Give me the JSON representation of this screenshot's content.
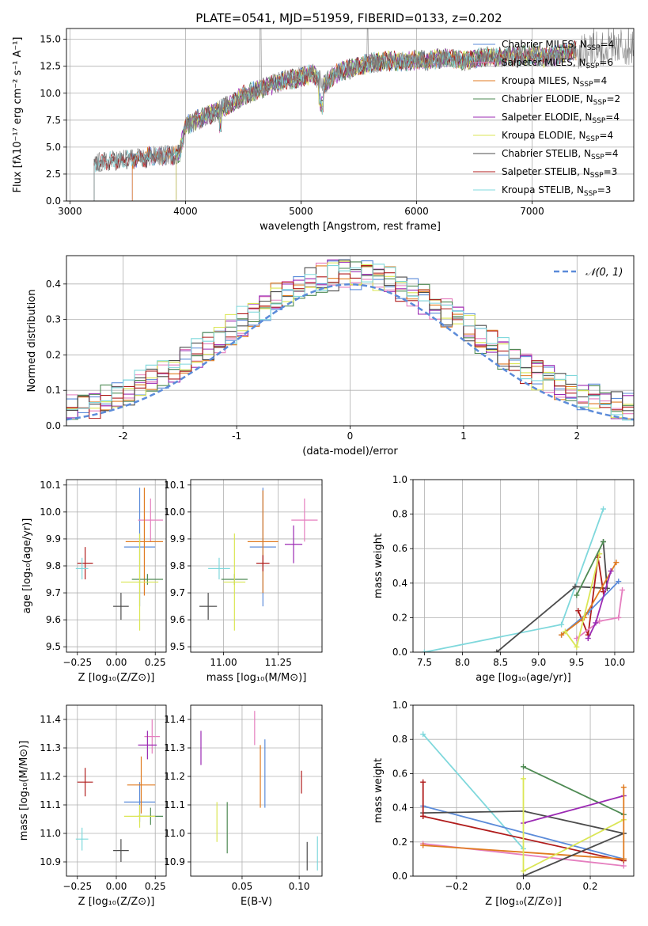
{
  "figure_title": "PLATE=0541, MJD=51959, FIBERID=0133, z=0.202",
  "colors": {
    "Chabrier MILES": "#5b8bd9",
    "Salpeter MILES": "#e57fbf",
    "Kroupa MILES": "#e07b20",
    "Chabrier ELODIE": "#4e8a53",
    "Salpeter ELODIE": "#9b2ab3",
    "Kroupa ELODIE": "#dbe655",
    "Chabrier STELIB": "#4c4c4c",
    "Salpeter STELIB": "#b01c1c",
    "Kroupa STELIB": "#7fd8dc",
    "normal": "#5b8bd9"
  },
  "chart_data": [
    {
      "id": "spectrum",
      "type": "line",
      "title": "PLATE=0541, MJD=51959, FIBERID=0133, z=0.202",
      "xlabel": "wavelength [Angstrom, rest frame]",
      "ylabel": "Flux [fλ10⁻¹⁷ erg cm⁻² s⁻¹ A⁻¹]",
      "xlim": [
        2970,
        7880
      ],
      "ylim": [
        0,
        16
      ],
      "xticks": [
        3000,
        4000,
        5000,
        6000,
        7000
      ],
      "yticks": [
        0.0,
        2.5,
        5.0,
        7.5,
        10.0,
        12.5,
        15.0
      ],
      "legend_position": "right",
      "legend": [
        {
          "model": "Chabrier MILES",
          "nssp": "4"
        },
        {
          "model": "Salpeter MILES",
          "nssp": "6"
        },
        {
          "model": "Kroupa MILES",
          "nssp": "4"
        },
        {
          "model": "Chabrier ELODIE",
          "nssp": "2"
        },
        {
          "model": "Salpeter ELODIE",
          "nssp": "4"
        },
        {
          "model": "Kroupa ELODIE",
          "nssp": "4"
        },
        {
          "model": "Chabrier STELIB",
          "nssp": "4"
        },
        {
          "model": "Salpeter STELIB",
          "nssp": "3"
        },
        {
          "model": "Kroupa STELIB",
          "nssp": "3"
        }
      ],
      "envelope": {
        "x": [
          3200,
          3300,
          3400,
          3500,
          3600,
          3700,
          3800,
          3900,
          3950,
          4000,
          4100,
          4200,
          4300,
          4400,
          4500,
          4600,
          4700,
          4800,
          4900,
          5000,
          5100,
          5200,
          5300,
          5400,
          5500,
          5600,
          5700,
          5800,
          5900,
          6000,
          6100,
          6200,
          6300,
          6400,
          6500,
          6600,
          6700,
          6800,
          6900,
          7000,
          7100,
          7200,
          7300,
          7400,
          7500
        ],
        "y": [
          3.5,
          3.6,
          3.8,
          3.9,
          3.9,
          4.1,
          4.2,
          4.3,
          4.5,
          7.0,
          7.5,
          8.0,
          8.5,
          9.0,
          9.8,
          10.2,
          10.6,
          11.0,
          11.3,
          11.5,
          11.8,
          10.8,
          11.8,
          12.2,
          12.5,
          12.8,
          12.9,
          13.0,
          12.9,
          13.1,
          13.0,
          13.2,
          13.3,
          13.0,
          13.2,
          13.4,
          13.3,
          13.5,
          13.4,
          13.6,
          13.3,
          13.5,
          13.8,
          14.0,
          14.2
        ]
      },
      "model_starts": {
        "Chabrier MILES": 3540,
        "Salpeter MILES": 3540,
        "Kroupa MILES": 3540,
        "Chabrier ELODIE": 3920,
        "Salpeter ELODIE": 3920,
        "Kroupa ELODIE": 3920,
        "Chabrier STELIB": 3210,
        "Salpeter STELIB": 3210,
        "Kroupa STELIB": 3210
      }
    },
    {
      "id": "residual_histogram",
      "type": "line",
      "xlabel": "(data-model)/error",
      "ylabel": "Normed distribution",
      "xlim": [
        -2.5,
        2.5
      ],
      "ylim": [
        0,
        0.48
      ],
      "xticks": [
        -2,
        -1,
        0,
        1,
        2
      ],
      "yticks": [
        0.0,
        0.1,
        0.2,
        0.3,
        0.4
      ],
      "legend": [
        "𝒩(0, 1)"
      ],
      "legend_position": "top-right",
      "bin_edges": [
        -2.5,
        2.5
      ],
      "bins": 50,
      "reference_curve": "normal(0,1)"
    },
    {
      "id": "age_vs_Z",
      "type": "scatter",
      "xlabel": "Z [log₁₀(Z/Z⊙)]",
      "ylabel": "age  [log₁₀(age/yr)]",
      "xlim": [
        -0.32,
        0.32
      ],
      "ylim": [
        9.48,
        10.12
      ],
      "xticks": [
        -0.25,
        0.0,
        0.25
      ],
      "xtick_labels": [
        "−0.25",
        "0.00",
        "0.25"
      ],
      "yticks": [
        9.5,
        9.6,
        9.7,
        9.8,
        9.9,
        10.0,
        10.1
      ],
      "points": [
        {
          "model": "Chabrier MILES",
          "x": 0.15,
          "y": 9.87,
          "xerr": 0.1,
          "yerr": 0.22
        },
        {
          "model": "Salpeter MILES",
          "x": 0.22,
          "y": 9.97,
          "xerr": 0.08,
          "yerr": 0.08
        },
        {
          "model": "Kroupa MILES",
          "x": 0.18,
          "y": 9.89,
          "xerr": 0.12,
          "yerr": 0.2
        },
        {
          "model": "Chabrier ELODIE",
          "x": 0.2,
          "y": 9.75,
          "xerr": 0.1,
          "yerr": 0.02
        },
        {
          "model": "Kroupa ELODIE",
          "x": 0.15,
          "y": 9.74,
          "xerr": 0.12,
          "yerr": 0.18
        },
        {
          "model": "Chabrier STELIB",
          "x": 0.03,
          "y": 9.65,
          "xerr": 0.05,
          "yerr": 0.05
        },
        {
          "model": "Salpeter STELIB",
          "x": -0.2,
          "y": 9.81,
          "xerr": 0.05,
          "yerr": 0.06
        },
        {
          "model": "Kroupa STELIB",
          "x": -0.22,
          "y": 9.79,
          "xerr": 0.04,
          "yerr": 0.04
        }
      ]
    },
    {
      "id": "age_vs_mass",
      "type": "scatter",
      "xlabel": "mass [log₁₀(M/M⊙)]",
      "ylabel": "",
      "xlim": [
        10.85,
        11.45
      ],
      "ylim": [
        9.48,
        10.12
      ],
      "xticks": [
        11.0,
        11.25
      ],
      "xtick_labels": [
        "11.00",
        "11.25"
      ],
      "yticks": [
        9.5,
        9.6,
        9.7,
        9.8,
        9.9,
        10.0,
        10.1
      ],
      "points": [
        {
          "model": "Chabrier MILES",
          "x": 11.18,
          "y": 9.87,
          "xerr": 0.06,
          "yerr": 0.22
        },
        {
          "model": "Salpeter MILES",
          "x": 11.37,
          "y": 9.97,
          "xerr": 0.06,
          "yerr": 0.08
        },
        {
          "model": "Kroupa MILES",
          "x": 11.18,
          "y": 9.89,
          "xerr": 0.07,
          "yerr": 0.19
        },
        {
          "model": "Salpeter ELODIE",
          "x": 11.32,
          "y": 9.88,
          "xerr": 0.04,
          "yerr": 0.07
        },
        {
          "model": "Chabrier ELODIE",
          "x": 11.05,
          "y": 9.75,
          "xerr": 0.06,
          "yerr": 0.02
        },
        {
          "model": "Kroupa ELODIE",
          "x": 11.05,
          "y": 9.74,
          "xerr": 0.05,
          "yerr": 0.18
        },
        {
          "model": "Chabrier STELIB",
          "x": 10.93,
          "y": 9.65,
          "xerr": 0.04,
          "yerr": 0.05
        },
        {
          "model": "Salpeter STELIB",
          "x": 11.18,
          "y": 9.81,
          "xerr": 0.03,
          "yerr": 0.03
        },
        {
          "model": "Kroupa STELIB",
          "x": 10.98,
          "y": 9.79,
          "xerr": 0.05,
          "yerr": 0.04
        }
      ]
    },
    {
      "id": "massweight_vs_age",
      "type": "line",
      "xlabel": "age  [log₁₀(age/yr)]",
      "ylabel": "mass weight",
      "xlim": [
        7.35,
        10.25
      ],
      "ylim": [
        0,
        1
      ],
      "xticks": [
        7.5,
        8.0,
        8.5,
        9.0,
        9.5,
        10.0
      ],
      "xtick_labels": [
        "7.5",
        "8.0",
        "8.5",
        "9.0",
        "9.5",
        "10.0"
      ],
      "yticks": [
        0.0,
        0.2,
        0.4,
        0.6,
        0.8,
        1.0
      ],
      "series": [
        {
          "model": "Kroupa STELIB",
          "x": [
            7.5,
            9.3,
            9.85
          ],
          "y": [
            0.0,
            0.16,
            0.83
          ]
        },
        {
          "model": "Chabrier STELIB",
          "x": [
            8.45,
            9.48,
            9.9,
            9.85
          ],
          "y": [
            0.0,
            0.38,
            0.37,
            0.64
          ]
        },
        {
          "model": "Salpeter STELIB",
          "x": [
            9.52,
            9.65,
            9.78,
            9.85
          ],
          "y": [
            0.24,
            0.1,
            0.55,
            0.35
          ]
        },
        {
          "model": "Chabrier MILES",
          "x": [
            9.3,
            9.65,
            10.05
          ],
          "y": [
            0.1,
            0.23,
            0.41
          ]
        },
        {
          "model": "Kroupa MILES",
          "x": [
            9.3,
            9.6,
            10.02
          ],
          "y": [
            0.1,
            0.2,
            0.52
          ]
        },
        {
          "model": "Salpeter MILES",
          "x": [
            9.5,
            9.8,
            10.05,
            10.1
          ],
          "y": [
            0.08,
            0.18,
            0.2,
            0.36
          ]
        },
        {
          "model": "Salpeter ELODIE",
          "x": [
            9.65,
            9.75,
            9.95
          ],
          "y": [
            0.08,
            0.17,
            0.47
          ]
        },
        {
          "model": "Kroupa ELODIE",
          "x": [
            9.35,
            9.5,
            9.8
          ],
          "y": [
            0.12,
            0.03,
            0.57
          ]
        },
        {
          "model": "Chabrier ELODIE",
          "x": [
            9.5,
            9.85
          ],
          "y": [
            0.33,
            0.64
          ]
        }
      ]
    },
    {
      "id": "mass_vs_Z",
      "type": "scatter",
      "xlabel": "Z [log₁₀(Z/Z⊙)]",
      "ylabel": "mass [log₁₀(M/M⊙)]",
      "xlim": [
        -0.32,
        0.32
      ],
      "ylim": [
        10.85,
        11.45
      ],
      "xticks": [
        -0.25,
        0.0,
        0.25
      ],
      "xtick_labels": [
        "−0.25",
        "0.00",
        "0.25"
      ],
      "yticks": [
        10.9,
        11.0,
        11.1,
        11.2,
        11.3,
        11.4
      ],
      "points": [
        {
          "model": "Chabrier MILES",
          "x": 0.15,
          "y": 11.11,
          "xerr": 0.1,
          "yerr": 0.07
        },
        {
          "model": "Salpeter MILES",
          "x": 0.23,
          "y": 11.34,
          "xerr": 0.05,
          "yerr": 0.06
        },
        {
          "model": "Kroupa MILES",
          "x": 0.16,
          "y": 11.17,
          "xerr": 0.09,
          "yerr": 0.1
        },
        {
          "model": "Salpeter ELODIE",
          "x": 0.2,
          "y": 11.31,
          "xerr": 0.06,
          "yerr": 0.05
        },
        {
          "model": "Chabrier ELODIE",
          "x": 0.22,
          "y": 11.06,
          "xerr": 0.08,
          "yerr": 0.03
        },
        {
          "model": "Kroupa ELODIE",
          "x": 0.15,
          "y": 11.06,
          "xerr": 0.1,
          "yerr": 0.04
        },
        {
          "model": "Chabrier STELIB",
          "x": 0.03,
          "y": 10.94,
          "xerr": 0.05,
          "yerr": 0.04
        },
        {
          "model": "Salpeter STELIB",
          "x": -0.2,
          "y": 11.18,
          "xerr": 0.05,
          "yerr": 0.05
        },
        {
          "model": "Kroupa STELIB",
          "x": -0.22,
          "y": 10.98,
          "xerr": 0.04,
          "yerr": 0.04
        }
      ]
    },
    {
      "id": "mass_vs_ebv",
      "type": "scatter",
      "xlabel": "E(B-V)",
      "ylabel": "",
      "xlim": [
        0.005,
        0.12
      ],
      "ylim": [
        10.85,
        11.45
      ],
      "xticks": [
        0.05,
        0.1
      ],
      "xtick_labels": [
        "0.05",
        "0.10"
      ],
      "yticks": [
        10.9,
        11.0,
        11.1,
        11.2,
        11.3,
        11.4
      ],
      "points": [
        {
          "model": "Salpeter ELODIE",
          "x": 0.014,
          "y": 11.3,
          "yerr": 0.06
        },
        {
          "model": "Kroupa ELODIE",
          "x": 0.028,
          "y": 11.04,
          "yerr": 0.07
        },
        {
          "model": "Chabrier ELODIE",
          "x": 0.037,
          "y": 11.02,
          "yerr": 0.09
        },
        {
          "model": "Salpeter MILES",
          "x": 0.061,
          "y": 11.37,
          "yerr": 0.06
        },
        {
          "model": "Kroupa MILES",
          "x": 0.066,
          "y": 11.2,
          "yerr": 0.11
        },
        {
          "model": "Chabrier MILES",
          "x": 0.07,
          "y": 11.21,
          "yerr": 0.12
        },
        {
          "model": "Salpeter STELIB",
          "x": 0.102,
          "y": 11.18,
          "yerr": 0.04
        },
        {
          "model": "Chabrier STELIB",
          "x": 0.107,
          "y": 10.92,
          "yerr": 0.05
        },
        {
          "model": "Kroupa STELIB",
          "x": 0.116,
          "y": 10.93,
          "yerr": 0.06
        }
      ]
    },
    {
      "id": "massweight_vs_Z",
      "type": "line",
      "xlabel": "Z [log₁₀(Z/Z⊙)]",
      "ylabel": "mass weight",
      "xlim": [
        -0.33,
        0.33
      ],
      "ylim": [
        0,
        1
      ],
      "xticks": [
        -0.2,
        0.0,
        0.2
      ],
      "xtick_labels": [
        "−0.2",
        "0.0",
        "0.2"
      ],
      "yticks": [
        0.0,
        0.2,
        0.4,
        0.6,
        0.8,
        1.0
      ],
      "series": [
        {
          "model": "Kroupa STELIB",
          "x": [
            -0.3,
            0.0
          ],
          "y": [
            0.83,
            0.16
          ]
        },
        {
          "model": "Chabrier MILES",
          "x": [
            -0.3,
            0.3
          ],
          "y": [
            0.41,
            0.1
          ]
        },
        {
          "model": "Chabrier STELIB",
          "x": [
            -0.3,
            0.0,
            0.3
          ],
          "y": [
            0.37,
            0.38,
            0.25
          ]
        },
        {
          "model": "Salpeter STELIB",
          "x": [
            -0.3,
            0.3
          ],
          "y": [
            0.35,
            0.09
          ]
        },
        {
          "model": "Salpeter STELIB",
          "x": [
            -0.3,
            -0.3
          ],
          "y": [
            0.35,
            0.55
          ]
        },
        {
          "model": "Salpeter MILES",
          "x": [
            -0.3,
            0.3
          ],
          "y": [
            0.19,
            0.06
          ]
        },
        {
          "model": "Kroupa MILES",
          "x": [
            -0.3,
            0.3
          ],
          "y": [
            0.18,
            0.1
          ]
        },
        {
          "model": "Chabrier ELODIE",
          "x": [
            0.0,
            0.3
          ],
          "y": [
            0.64,
            0.36
          ]
        },
        {
          "model": "Salpeter ELODIE",
          "x": [
            0.0,
            0.3
          ],
          "y": [
            0.31,
            0.47
          ]
        },
        {
          "model": "Kroupa ELODIE",
          "x": [
            0.0,
            0.0,
            0.3
          ],
          "y": [
            0.57,
            0.03,
            0.33
          ]
        },
        {
          "model": "Chabrier STELIB",
          "x": [
            0.0,
            0.3
          ],
          "y": [
            0.0,
            0.25
          ]
        },
        {
          "model": "Kroupa MILES",
          "x": [
            0.3,
            0.3
          ],
          "y": [
            0.1,
            0.52
          ]
        }
      ]
    }
  ]
}
